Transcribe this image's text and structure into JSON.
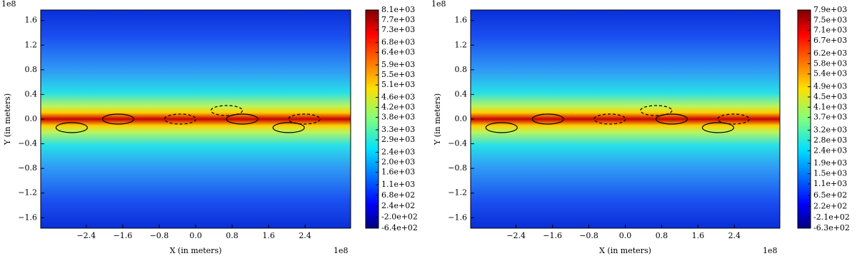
{
  "chart_data": [
    {
      "type": "contour",
      "colormap": "jet",
      "x_label": "X (in meters)",
      "y_label": "Y (in meters)",
      "x_offset": "1e8",
      "y_offset": "1e8",
      "xlim": [
        -3.4,
        3.4
      ],
      "ylim": [
        -1.77,
        1.77
      ],
      "xticks": [
        {
          "value": -2.4,
          "label": "−2.4"
        },
        {
          "value": -1.6,
          "label": "−1.6"
        },
        {
          "value": -0.8,
          "label": "−0.8"
        },
        {
          "value": 0,
          "label": "0.0"
        },
        0.8,
        1.6,
        2.4
      ],
      "yticks": [
        {
          "value": -1.6,
          "label": "−1.6"
        },
        {
          "value": -1.2,
          "label": "−1.2"
        },
        {
          "value": -0.8,
          "label": "−0.8"
        },
        {
          "value": -0.4,
          "label": "−0.4"
        },
        {
          "value": 0,
          "label": "0.0"
        },
        0.4,
        0.8,
        1.2,
        1.6
      ],
      "colorbar": {
        "clim": [
          -640,
          8100
        ],
        "ticks": [
          {
            "value": 8100,
            "label": "8.1e+03"
          },
          {
            "value": 7700,
            "label": "7.7e+03"
          },
          {
            "value": 7300,
            "label": "7.3e+03"
          },
          {
            "value": 6800,
            "label": "6.8e+03"
          },
          {
            "value": 6400,
            "label": "6.4e+03"
          },
          {
            "value": 5900,
            "label": "5.9e+03"
          },
          {
            "value": 5500,
            "label": "5.5e+03"
          },
          {
            "value": 5100,
            "label": "5.1e+03"
          },
          {
            "value": 4600,
            "label": "4.6e+03"
          },
          {
            "value": 4200,
            "label": "4.2e+03"
          },
          {
            "value": 3800,
            "label": "3.8e+03"
          },
          {
            "value": 3300,
            "label": "3.3e+03"
          },
          {
            "value": 2900,
            "label": "2.9e+03"
          },
          {
            "value": 2400,
            "label": "2.4e+03"
          },
          {
            "value": 2000,
            "label": "2.0e+03"
          },
          {
            "value": 1600,
            "label": "1.6e+03"
          },
          {
            "value": 1100,
            "label": "1.1e+03"
          },
          {
            "value": 680,
            "label": "6.8e+02"
          },
          {
            "value": 240,
            "label": "2.4e+02"
          },
          {
            "value": -200,
            "label": "-2.0e+02"
          },
          {
            "value": -640,
            "label": "-6.4e+02"
          }
        ]
      }
    },
    {
      "type": "contour",
      "colormap": "jet",
      "x_label": "X (in meters)",
      "y_label": "Y (in meters)",
      "x_offset": "1e8",
      "y_offset": "1e8",
      "xlim": [
        -3.4,
        3.4
      ],
      "ylim": [
        -1.77,
        1.77
      ],
      "xticks": [
        {
          "value": -2.4,
          "label": "−2.4"
        },
        {
          "value": -1.6,
          "label": "−1.6"
        },
        {
          "value": -0.8,
          "label": "−0.8"
        },
        {
          "value": 0,
          "label": "0.0"
        },
        0.8,
        1.6,
        2.4
      ],
      "yticks": [
        {
          "value": -1.6,
          "label": "−1.6"
        },
        {
          "value": -1.2,
          "label": "−1.2"
        },
        {
          "value": -0.8,
          "label": "−0.8"
        },
        {
          "value": -0.4,
          "label": "−0.4"
        },
        {
          "value": 0,
          "label": "0.0"
        },
        0.4,
        0.8,
        1.2,
        1.6
      ],
      "colorbar": {
        "clim": [
          -630,
          7900
        ],
        "ticks": [
          {
            "value": 7900,
            "label": "7.9e+03"
          },
          {
            "value": 7500,
            "label": "7.5e+03"
          },
          {
            "value": 7100,
            "label": "7.1e+03"
          },
          {
            "value": 6700,
            "label": "6.7e+03"
          },
          {
            "value": 6200,
            "label": "6.2e+03"
          },
          {
            "value": 5800,
            "label": "5.8e+03"
          },
          {
            "value": 5400,
            "label": "5.4e+03"
          },
          {
            "value": 4900,
            "label": "4.9e+03"
          },
          {
            "value": 4500,
            "label": "4.5e+03"
          },
          {
            "value": 4100,
            "label": "4.1e+03"
          },
          {
            "value": 3700,
            "label": "3.7e+03"
          },
          {
            "value": 3200,
            "label": "3.2e+03"
          },
          {
            "value": 2800,
            "label": "2.8e+03"
          },
          {
            "value": 2400,
            "label": "2.4e+03"
          },
          {
            "value": 1900,
            "label": "1.9e+03"
          },
          {
            "value": 1500,
            "label": "1.5e+03"
          },
          {
            "value": 1100,
            "label": "1.1e+03"
          },
          {
            "value": 650,
            "label": "6.5e+02"
          },
          {
            "value": 220,
            "label": "2.2e+02"
          },
          {
            "value": -210,
            "label": "-2.1e+02"
          },
          {
            "value": -630,
            "label": "-6.3e+02"
          }
        ]
      }
    }
  ]
}
